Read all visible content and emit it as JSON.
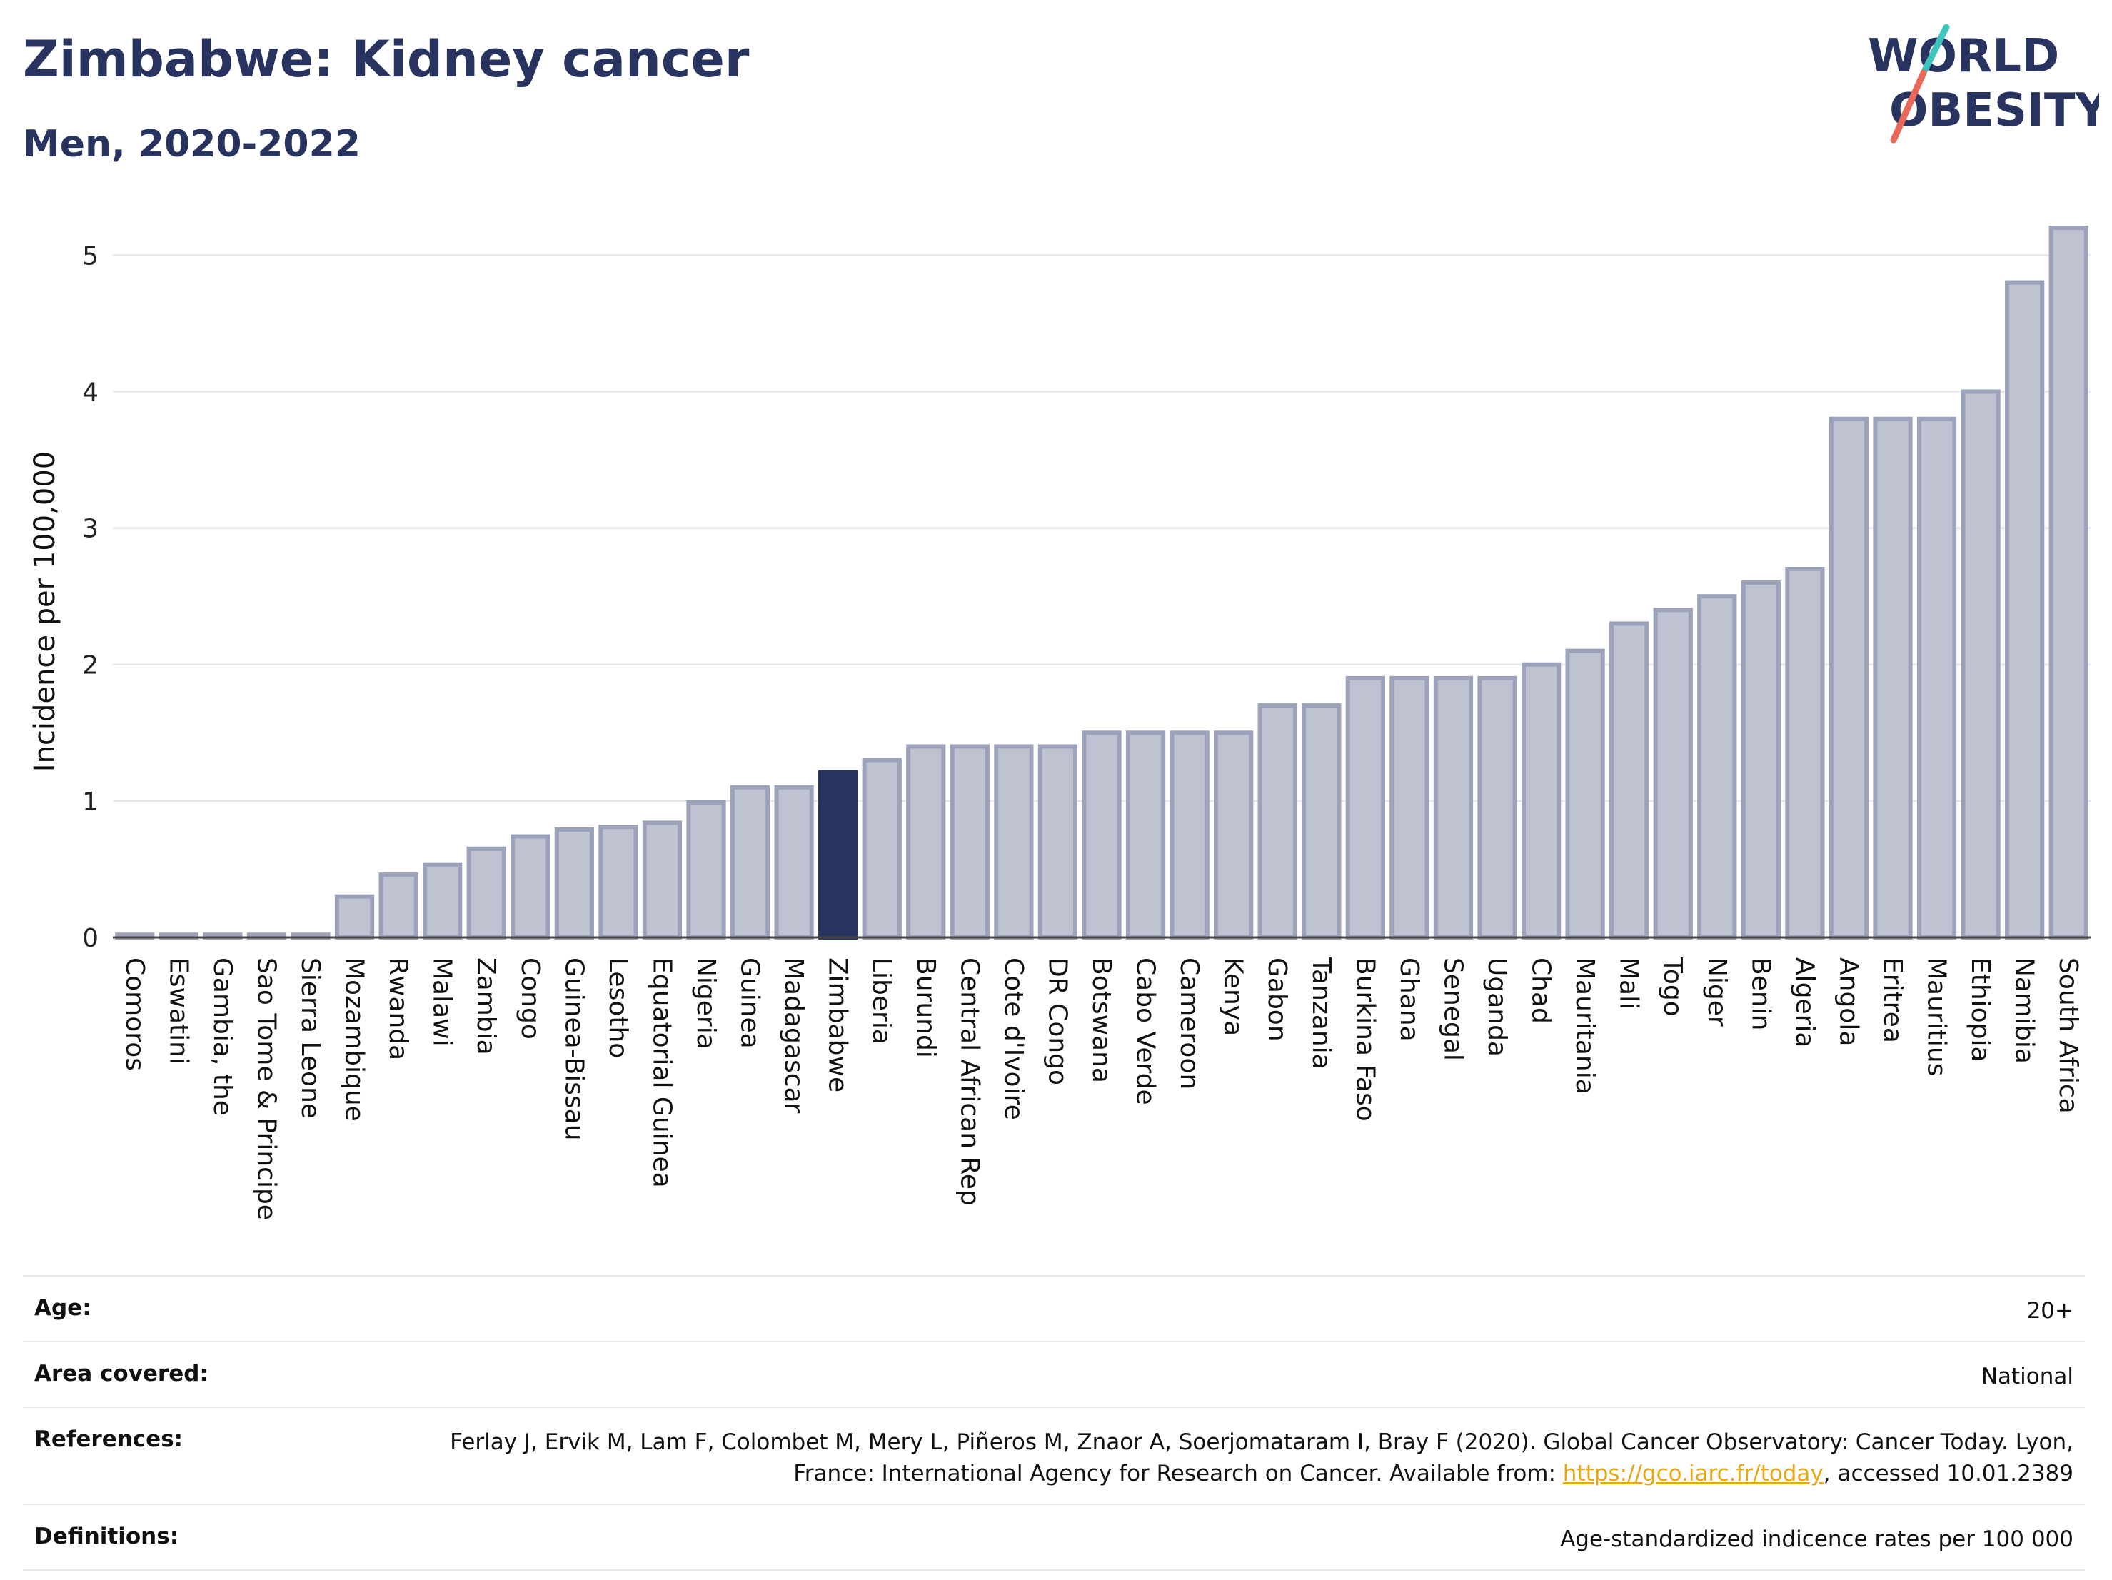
{
  "header": {
    "title": "Zimbabwe: Kidney cancer",
    "subtitle": "Men, 2020-2022"
  },
  "logo": {
    "line1": "WORLD",
    "line2": "OBESITY",
    "icon": "world-obesity-logo",
    "colors": {
      "navy": "#283360",
      "teal": "#3cc4bd",
      "coral": "#e8685a"
    }
  },
  "colors": {
    "bar": "#bfc3d1",
    "bar_stroke": "#9ca2b9",
    "highlight": "#283360",
    "grid": "#e8e8ee"
  },
  "chart_data": {
    "type": "bar",
    "ylabel": "Incidence per 100,000",
    "ylim": [
      0,
      5.3
    ],
    "yticks": [
      0,
      1,
      2,
      3,
      4,
      5
    ],
    "grid": true,
    "highlight": "Zimbabwe",
    "categories": [
      "Comoros",
      "Eswatini",
      "Gambia, the",
      "Sao Tome & Principe",
      "Sierra Leone",
      "Mozambique",
      "Rwanda",
      "Malawi",
      "Zambia",
      "Congo",
      "Guinea-Bissau",
      "Lesotho",
      "Equatorial Guinea",
      "Nigeria",
      "Guinea",
      "Madagascar",
      "Zimbabwe",
      "Liberia",
      "Burundi",
      "Central African Rep",
      "Cote d'Ivoire",
      "DR Congo",
      "Botswana",
      "Cabo Verde",
      "Cameroon",
      "Kenya",
      "Gabon",
      "Tanzania",
      "Burkina Faso",
      "Ghana",
      "Senegal",
      "Uganda",
      "Chad",
      "Mauritania",
      "Mali",
      "Togo",
      "Niger",
      "Benin",
      "Algeria",
      "Angola",
      "Eritrea",
      "Mauritius",
      "Ethiopia",
      "Namibia",
      "South Africa"
    ],
    "values": [
      0.02,
      0.02,
      0.02,
      0.02,
      0.02,
      0.3,
      0.46,
      0.53,
      0.65,
      0.74,
      0.79,
      0.81,
      0.84,
      0.99,
      1.1,
      1.1,
      1.21,
      1.3,
      1.4,
      1.4,
      1.4,
      1.4,
      1.5,
      1.5,
      1.5,
      1.5,
      1.7,
      1.7,
      1.9,
      1.9,
      1.9,
      1.9,
      2.0,
      2.1,
      2.3,
      2.4,
      2.5,
      2.6,
      2.7,
      3.8,
      3.8,
      3.8,
      4.0,
      4.8,
      5.2
    ]
  },
  "meta": {
    "age_label": "Age:",
    "age_value": "20+",
    "area_label": "Area covered:",
    "area_value": "National",
    "ref_label": "References:",
    "ref_text_1": "Ferlay J, Ervik M, Lam F, Colombet M, Mery L, Piñeros M, Znaor A, Soerjomataram I, Bray F (2020). Global Cancer Observatory: Cancer Today. Lyon, France: International Agency for Research on Cancer. Available from: ",
    "ref_link": "https://gco.iarc.fr/today",
    "ref_text_2": ", accessed 10.01.2389",
    "def_label": "Definitions:",
    "def_value": "Age-standardized indicence rates per 100 000"
  }
}
